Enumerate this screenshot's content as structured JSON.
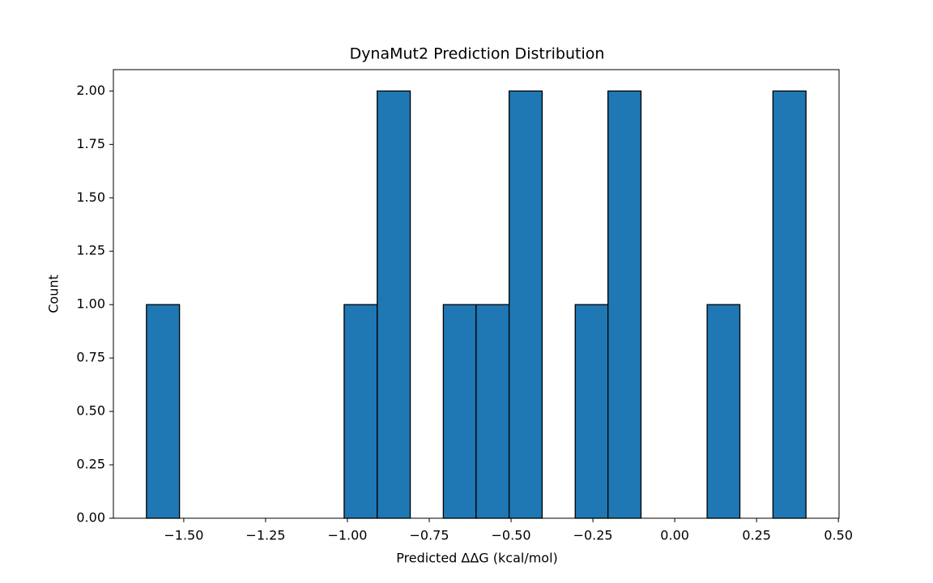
{
  "chart_data": {
    "type": "histogram",
    "title": "DynaMut2 Prediction Distribution",
    "x_label": "Predicted ΔΔG (kcal/mol)",
    "y_label": "Count",
    "bins": [
      -1.614,
      -1.513,
      -1.413,
      -1.312,
      -1.211,
      -1.11,
      -1.01,
      -0.909,
      -0.808,
      -0.707,
      -0.607,
      -0.506,
      -0.405,
      -0.304,
      -0.204,
      -0.103,
      -0.002,
      0.099,
      0.199,
      0.3,
      0.401
    ],
    "values": [
      1,
      0,
      0,
      0,
      0,
      0,
      1,
      2,
      0,
      1,
      1,
      2,
      0,
      1,
      2,
      0,
      0,
      1,
      0,
      2
    ],
    "color": "#1f77b4",
    "edgecolor": "#000000",
    "xlim": [
      -1.715,
      0.502
    ],
    "ylim": [
      0,
      2.1
    ],
    "xticks": [
      {
        "value": -1.5,
        "label": "−1.50"
      },
      {
        "value": -1.25,
        "label": "−1.25"
      },
      {
        "value": -1.0,
        "label": "−1.00"
      },
      {
        "value": -0.75,
        "label": "−0.75"
      },
      {
        "value": -0.5,
        "label": "−0.50"
      },
      {
        "value": -0.25,
        "label": "−0.25"
      },
      {
        "value": 0,
        "label": "0.00"
      },
      {
        "value": 0.25,
        "label": "0.25"
      },
      {
        "value": 0.5,
        "label": "0.50"
      }
    ],
    "yticks": [
      {
        "value": 0,
        "label": "0.00"
      },
      {
        "value": 0.25,
        "label": "0.25"
      },
      {
        "value": 0.5,
        "label": "0.50"
      },
      {
        "value": 0.75,
        "label": "0.75"
      },
      {
        "value": 1.0,
        "label": "1.00"
      },
      {
        "value": 1.25,
        "label": "1.25"
      },
      {
        "value": 1.5,
        "label": "1.50"
      },
      {
        "value": 1.75,
        "label": "1.75"
      },
      {
        "value": 2.0,
        "label": "2.00"
      }
    ]
  }
}
